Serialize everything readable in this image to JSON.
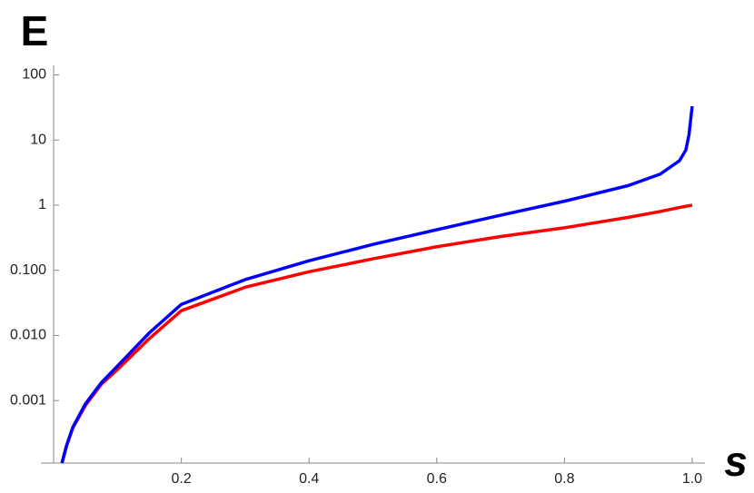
{
  "chart_data": {
    "type": "line",
    "ylabel": "E",
    "xlabel": "s",
    "log_y": true,
    "x": [
      0.013,
      0.02,
      0.03,
      0.05,
      0.075,
      0.1,
      0.15,
      0.2,
      0.3,
      0.4,
      0.5,
      0.6,
      0.7,
      0.8,
      0.9,
      0.95,
      0.98,
      0.99,
      0.995,
      1.0
    ],
    "series": [
      {
        "color": "#ff0000",
        "values": [
          0.00011,
          0.0002,
          0.00038,
          0.00085,
          0.0018,
          0.003,
          0.009,
          0.024,
          0.055,
          0.095,
          0.15,
          0.23,
          0.33,
          0.45,
          0.65,
          0.8,
          0.92,
          0.96,
          0.98,
          1.0
        ]
      },
      {
        "color": "#0000ff",
        "values": [
          0.00011,
          0.0002,
          0.00039,
          0.0009,
          0.0019,
          0.0034,
          0.011,
          0.03,
          0.072,
          0.14,
          0.25,
          0.42,
          0.7,
          1.15,
          2.0,
          3.0,
          4.8,
          7,
          12,
          33
        ]
      }
    ],
    "xlim": [
      -0.02,
      1.02
    ],
    "ylim": [
      0.00011,
      140
    ],
    "xticks": [
      0.2,
      0.4,
      0.6,
      0.8,
      {
        "value": 1.0,
        "label": "1.0"
      }
    ],
    "yticks": [
      {
        "value": 0.001,
        "label": "0.001"
      },
      {
        "value": 0.01,
        "label": "0.010"
      },
      {
        "value": 0.1,
        "label": "0.100"
      },
      1,
      10,
      100
    ]
  }
}
